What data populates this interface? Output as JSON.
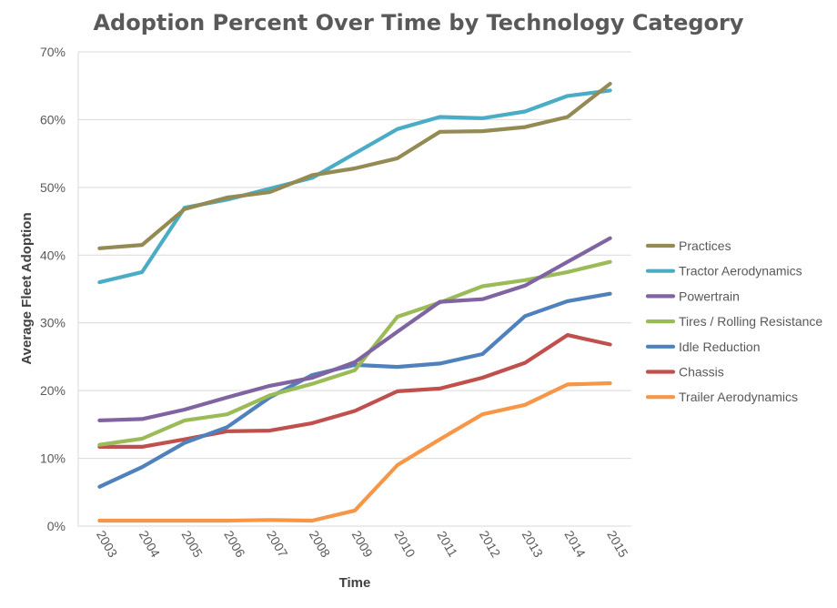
{
  "chart_data": {
    "type": "line",
    "title": "Adoption Percent Over Time by Technology Category",
    "xlabel": "Time",
    "ylabel": "Average Fleet Adoption",
    "categories": [
      "2003",
      "2004",
      "2005",
      "2006",
      "2007",
      "2008",
      "2009",
      "2010",
      "2011",
      "2012",
      "2013",
      "2014",
      "2015"
    ],
    "ylim": [
      0,
      70
    ],
    "yticks": [
      0,
      10,
      20,
      30,
      40,
      50,
      60,
      70
    ],
    "ytick_labels": [
      "0%",
      "10%",
      "20%",
      "30%",
      "40%",
      "50%",
      "60%",
      "70%"
    ],
    "grid": "horizontal",
    "legend_position": "right",
    "series": [
      {
        "name": "Practices",
        "color": "#948A54",
        "values": [
          41,
          41.5,
          46.8,
          48.5,
          49.3,
          51.8,
          52.8,
          54.3,
          58.2,
          58.3,
          58.9,
          60.4,
          65.3
        ]
      },
      {
        "name": "Tractor Aerodynamics",
        "color": "#4BACC6",
        "values": [
          36,
          37.5,
          47,
          48.2,
          49.8,
          51.4,
          55,
          58.6,
          60.4,
          60.2,
          61.2,
          63.5,
          64.3
        ]
      },
      {
        "name": "Powertrain",
        "color": "#8064A2",
        "values": [
          15.6,
          15.8,
          17.2,
          19,
          20.7,
          21.9,
          24.2,
          28.7,
          33.1,
          33.5,
          35.5,
          39,
          42.5
        ]
      },
      {
        "name": "Tires / Rolling Resistance",
        "color": "#9BBB59",
        "values": [
          12,
          12.9,
          15.6,
          16.5,
          19.3,
          21,
          23,
          30.9,
          33,
          35.4,
          36.3,
          37.5,
          39
        ]
      },
      {
        "name": "Idle Reduction",
        "color": "#4F81BD",
        "values": [
          5.8,
          8.7,
          12.3,
          14.6,
          19,
          22.3,
          23.8,
          23.5,
          24,
          25.4,
          31,
          33.2,
          34.3
        ]
      },
      {
        "name": "Chassis",
        "color": "#C0504D",
        "values": [
          11.7,
          11.7,
          12.8,
          14,
          14.1,
          15.2,
          17,
          19.9,
          20.3,
          21.9,
          24.1,
          28.2,
          26.8
        ]
      },
      {
        "name": "Trailer Aerodynamics",
        "color": "#F79646",
        "values": [
          0.8,
          0.8,
          0.8,
          0.8,
          0.9,
          0.8,
          2.3,
          9,
          12.8,
          16.5,
          17.9,
          20.9,
          21.1
        ]
      }
    ]
  }
}
